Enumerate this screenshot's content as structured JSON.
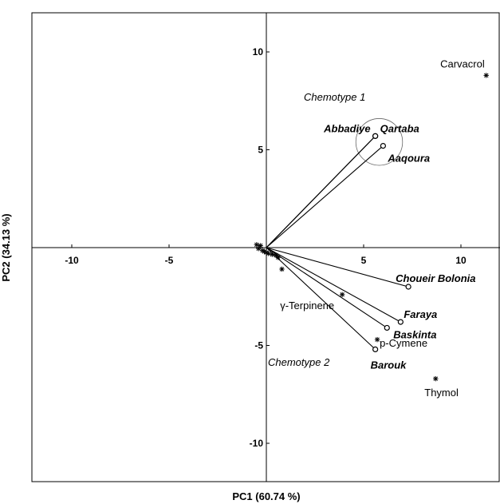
{
  "chart_data": {
    "type": "scatter",
    "subtype": "biplot",
    "title": "",
    "xlabel": "PC1 (60.74 %)",
    "ylabel": "PC2 (34.13 %)",
    "xlim": [
      -12,
      12
    ],
    "ylim": [
      -12,
      12
    ],
    "xticks": [
      {
        "value": -10,
        "label": "-10"
      },
      {
        "value": -5,
        "label": "-5"
      },
      {
        "value": 5,
        "label": "5"
      },
      {
        "value": 10,
        "label": "10"
      }
    ],
    "yticks": [
      {
        "value": 10,
        "label": "10"
      },
      {
        "value": 5,
        "label": "5"
      },
      {
        "value": -5,
        "label": "-5"
      },
      {
        "value": -10,
        "label": "-10"
      }
    ],
    "grid": false,
    "legend": "none",
    "samples": [
      {
        "name": "Abbadiye",
        "x": 5.6,
        "y": 5.7
      },
      {
        "name": "Qartaba",
        "x": 5.6,
        "y": 5.7
      },
      {
        "name": "Aaqoura",
        "x": 6.0,
        "y": 5.2
      },
      {
        "name": "Choueir Bolonia",
        "x": 7.3,
        "y": -2.0
      },
      {
        "name": "Faraya",
        "x": 6.9,
        "y": -3.8
      },
      {
        "name": "Baskinta",
        "x": 6.2,
        "y": -4.1
      },
      {
        "name": "Barouk",
        "x": 5.6,
        "y": -5.2
      }
    ],
    "variables": [
      {
        "name": "Carvacrol",
        "x": 11.3,
        "y": 8.8
      },
      {
        "name": "γ-Terpinene",
        "x": 3.9,
        "y": -2.4
      },
      {
        "name": "p-Cymene",
        "x": 5.7,
        "y": -4.7
      },
      {
        "name": "Thymol",
        "x": 8.7,
        "y": -6.7
      },
      {
        "name": "",
        "x": 0.8,
        "y": -1.1
      }
    ],
    "origin_cluster": [
      [
        -0.5,
        0.15
      ],
      [
        -0.4,
        -0.05
      ],
      [
        -0.3,
        0.1
      ],
      [
        -0.2,
        -0.15
      ],
      [
        -0.1,
        -0.2
      ],
      [
        0.0,
        -0.25
      ],
      [
        0.1,
        -0.3
      ],
      [
        0.3,
        -0.35
      ],
      [
        0.5,
        -0.4
      ],
      [
        0.6,
        -0.5
      ]
    ],
    "groups": [
      {
        "label": "Chemotype 1",
        "x": 5.8,
        "y": 5.4,
        "radius": 1.2
      },
      {
        "label": "Chemotype 2"
      }
    ],
    "colors": {
      "line": "#000000",
      "marker": "#000000",
      "circle": "#666666"
    }
  }
}
